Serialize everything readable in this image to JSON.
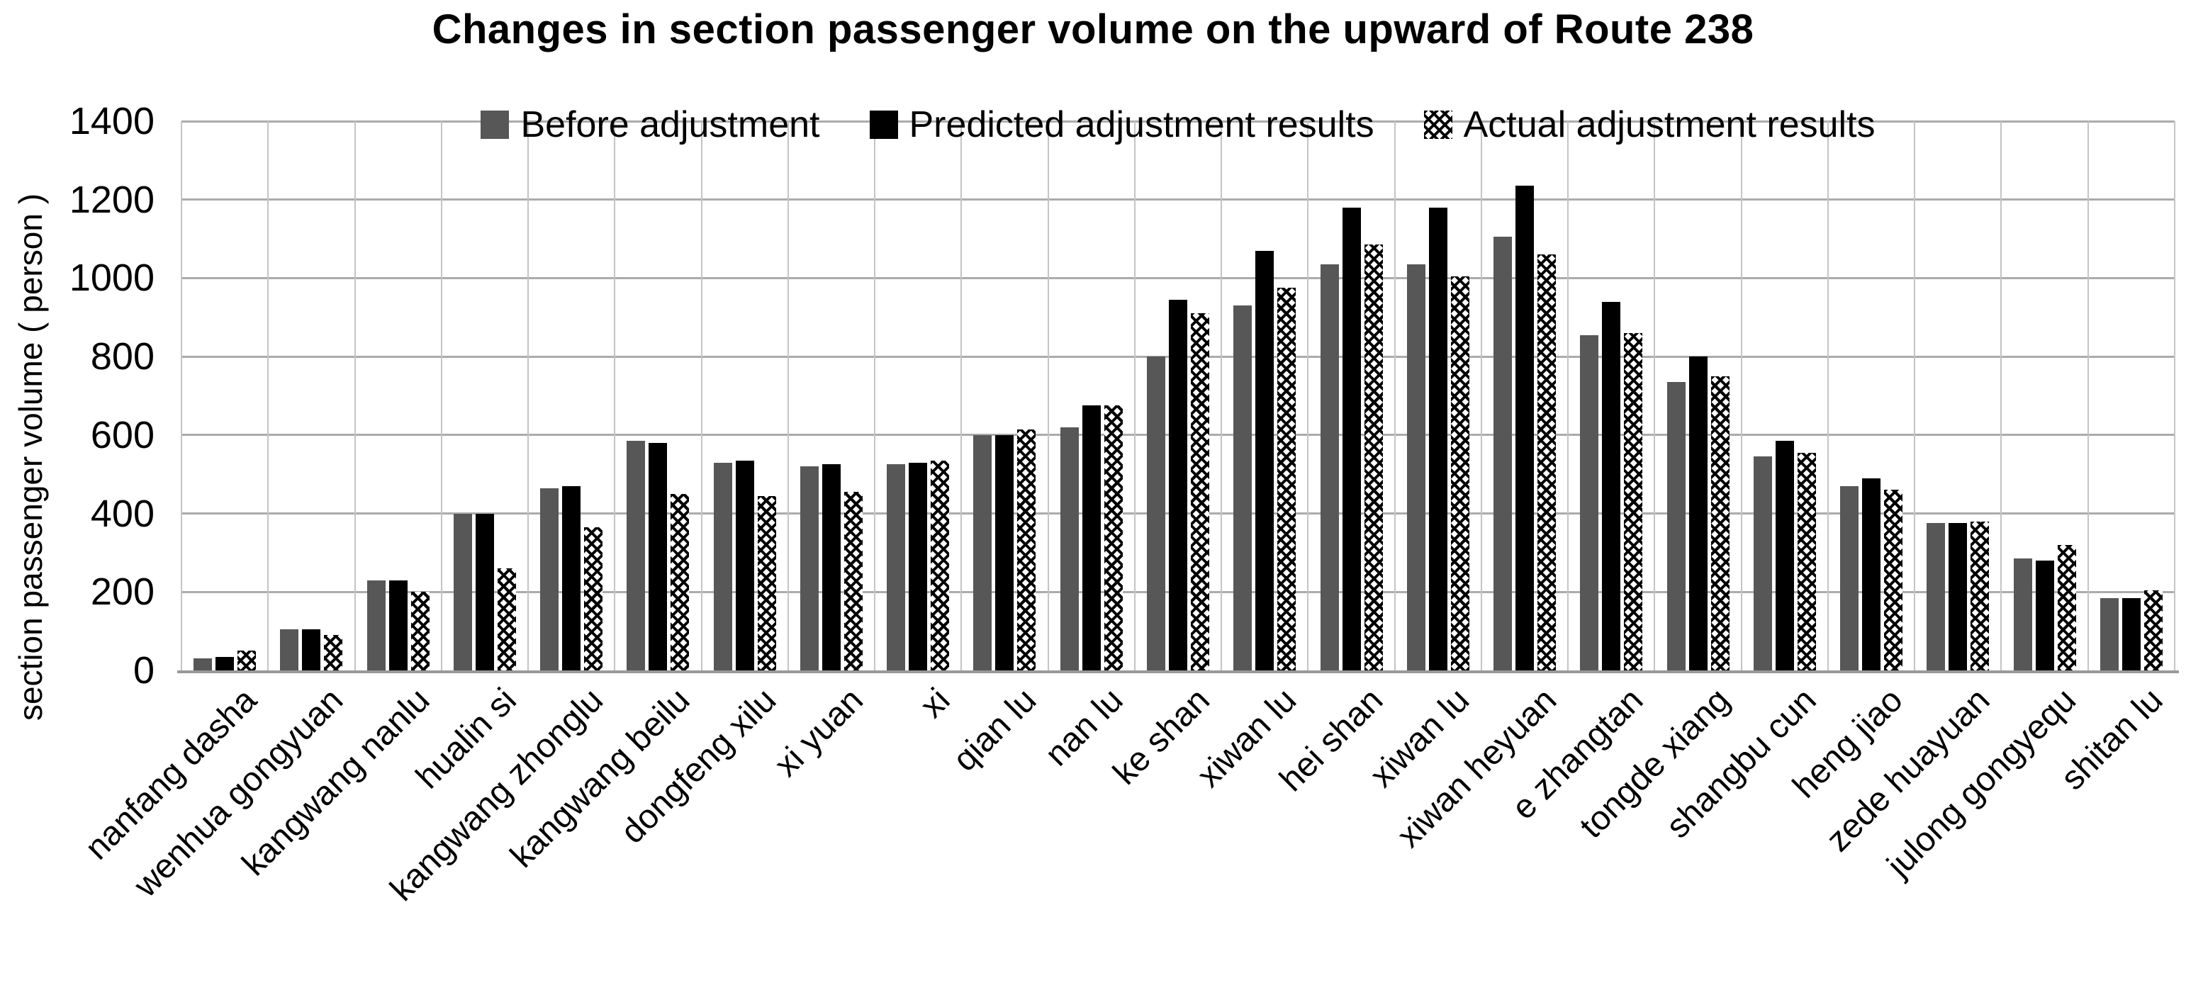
{
  "title": "Changes in section passenger volume on the upward of Route 238",
  "y_axis": {
    "title": "section passenger volume ( person )",
    "tick_labels": [
      "0",
      "200",
      "400",
      "600",
      "800",
      "1000",
      "1200",
      "1400"
    ]
  },
  "legend": {
    "items": [
      {
        "label": "Before adjustment",
        "swatch": "solid-gray"
      },
      {
        "label": "Predicted adjustment results",
        "swatch": "solid-black"
      },
      {
        "label": "Actual adjustment results",
        "swatch": "crosshatch"
      }
    ]
  },
  "colors": {
    "before_adjustment": "#575757",
    "predicted_adjustment": "#000000",
    "actual_adjustment_pattern": "#000000",
    "gridline": "#ababab",
    "axis_line": "#999999"
  },
  "chart_data": {
    "type": "bar",
    "title": "Changes in section passenger volume on the upward of Route 238",
    "xlabel": "",
    "ylabel": "section passenger volume ( person )",
    "ylim": [
      0,
      1400
    ],
    "ytick_step": 200,
    "grid": true,
    "legend_position": "top-center",
    "categories": [
      "nanfang dasha",
      "wenhua gongyuan",
      "kangwang nanlu",
      "hualin si",
      "kangwang zhonglu",
      "kangwang beilu",
      "dongfeng xilu",
      "xi yuan",
      "xi",
      "qian lu",
      "nan lu",
      "ke shan",
      "xiwan lu",
      "hei shan",
      "xiwan lu",
      "xiwan heyuan",
      "e zhangtan",
      "tongde xiang",
      "shangbu cun",
      "heng jiao",
      "zede huayuan",
      "julong gongyequ",
      "shitan lu"
    ],
    "series": [
      {
        "name": "Before adjustment",
        "style": "solid-gray",
        "values": [
          30,
          105,
          230,
          400,
          465,
          585,
          530,
          520,
          525,
          600,
          620,
          800,
          930,
          1035,
          1035,
          1105,
          855,
          735,
          545,
          470,
          375,
          285,
          185
        ]
      },
      {
        "name": "Predicted adjustment results",
        "style": "solid-black",
        "values": [
          35,
          105,
          230,
          400,
          470,
          580,
          535,
          525,
          530,
          600,
          675,
          945,
          1070,
          1180,
          1180,
          1235,
          940,
          800,
          585,
          490,
          375,
          280,
          185
        ]
      },
      {
        "name": "Actual adjustment results",
        "style": "crosshatch",
        "values": [
          50,
          90,
          200,
          260,
          365,
          450,
          445,
          455,
          535,
          615,
          675,
          910,
          975,
          1085,
          1005,
          1060,
          860,
          750,
          555,
          460,
          380,
          320,
          205
        ]
      }
    ]
  }
}
